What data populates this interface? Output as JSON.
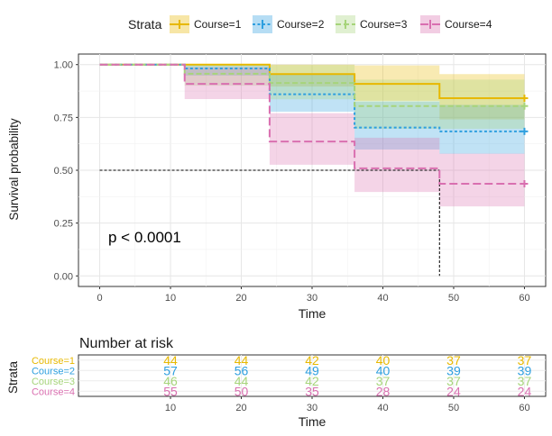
{
  "chart_data": [
    {
      "type": "line",
      "subtype": "kaplan-meier",
      "title": "",
      "xlabel": "Time",
      "ylabel": "Survival probability",
      "xlim": [
        -3,
        63
      ],
      "ylim": [
        -0.05,
        1.05
      ],
      "x_ticks": [
        0,
        10,
        20,
        30,
        40,
        50,
        60
      ],
      "y_ticks": [
        0.0,
        0.25,
        0.5,
        0.75,
        1.0
      ],
      "y_tick_labels": [
        "0.00",
        "0.25",
        "0.50",
        "0.75",
        "1.00"
      ],
      "grid": true,
      "legend": {
        "title": "Strata",
        "position": "top"
      },
      "annotation": "p < 0.0001",
      "median_line": {
        "y": 0.5,
        "x": 48
      },
      "series": [
        {
          "name": "Course=1",
          "color": "#E7B800",
          "dash": "solid",
          "x": [
            0,
            24,
            36,
            48,
            60
          ],
          "y": [
            1.0,
            0.955,
            0.909,
            0.841,
            0.841
          ],
          "lower": [
            1.0,
            0.896,
            0.829,
            0.741,
            0.741
          ],
          "upper": [
            1.0,
            1.0,
            0.996,
            0.955,
            0.955
          ]
        },
        {
          "name": "Course=2",
          "color": "#2E9FDF",
          "dash": "dotted",
          "x": [
            0,
            12,
            24,
            36,
            48,
            60
          ],
          "y": [
            1.0,
            0.982,
            0.86,
            0.702,
            0.684,
            0.684
          ],
          "lower": [
            1.0,
            0.948,
            0.777,
            0.598,
            0.578,
            0.578
          ],
          "upper": [
            1.0,
            1.0,
            0.952,
            0.825,
            0.809,
            0.809
          ]
        },
        {
          "name": "Course=3",
          "color": "#A6D47A",
          "dash": "dashed",
          "x": [
            0,
            12,
            24,
            36,
            60
          ],
          "y": [
            1.0,
            0.957,
            0.913,
            0.804,
            0.804
          ],
          "lower": [
            1.0,
            0.9,
            0.836,
            0.696,
            0.696
          ],
          "upper": [
            1.0,
            1.0,
            0.998,
            0.929,
            0.929
          ]
        },
        {
          "name": "Course=4",
          "color": "#D96FB0",
          "dash": "longdash",
          "x": [
            0,
            12,
            24,
            36,
            48,
            60
          ],
          "y": [
            1.0,
            0.909,
            0.636,
            0.509,
            0.436,
            0.436
          ],
          "lower": [
            1.0,
            0.837,
            0.526,
            0.397,
            0.329,
            0.329
          ],
          "upper": [
            1.0,
            0.988,
            0.77,
            0.654,
            0.579,
            0.579
          ]
        }
      ],
      "censor_marks": [
        {
          "series": "Course=1",
          "x": 60,
          "y": 0.841
        },
        {
          "series": "Course=2",
          "x": 60,
          "y": 0.684
        },
        {
          "series": "Course=3",
          "x": 60,
          "y": 0.804
        },
        {
          "series": "Course=4",
          "x": 60,
          "y": 0.436
        }
      ]
    },
    {
      "type": "table",
      "title": "Number at risk",
      "xlabel": "Time",
      "ylabel": "Strata",
      "x_ticks": [
        10,
        20,
        30,
        40,
        50,
        60
      ],
      "time_points": [
        10,
        20,
        30,
        40,
        50,
        60
      ],
      "rows": [
        {
          "name": "Course=1",
          "color": "#E7B800",
          "values": [
            44,
            44,
            42,
            40,
            37,
            37
          ]
        },
        {
          "name": "Course=2",
          "color": "#2E9FDF",
          "values": [
            57,
            56,
            49,
            40,
            39,
            39
          ]
        },
        {
          "name": "Course=3",
          "color": "#A6D47A",
          "values": [
            46,
            44,
            42,
            37,
            37,
            37
          ]
        },
        {
          "name": "Course=4",
          "color": "#D96FB0",
          "values": [
            55,
            50,
            35,
            28,
            24,
            24
          ]
        }
      ]
    }
  ]
}
